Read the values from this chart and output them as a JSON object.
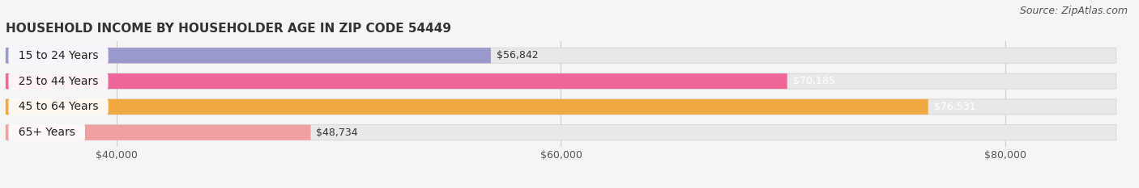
{
  "title": "HOUSEHOLD INCOME BY HOUSEHOLDER AGE IN ZIP CODE 54449",
  "source": "Source: ZipAtlas.com",
  "categories": [
    "15 to 24 Years",
    "25 to 44 Years",
    "45 to 64 Years",
    "65+ Years"
  ],
  "values": [
    56842,
    70185,
    76531,
    48734
  ],
  "bar_colors": [
    "#9999cc",
    "#ee6699",
    "#f0a840",
    "#f0a0a0"
  ],
  "value_labels": [
    "$56,842",
    "$70,185",
    "$76,531",
    "$48,734"
  ],
  "value_label_colors": [
    "#333333",
    "#ffffff",
    "#ffffff",
    "#333333"
  ],
  "xlim_min": 35000,
  "xlim_max": 85000,
  "xticks": [
    40000,
    60000,
    80000
  ],
  "xtick_labels": [
    "$40,000",
    "$60,000",
    "$80,000"
  ],
  "background_color": "#f5f5f5",
  "bar_bg_color": "#e8e8e8",
  "title_fontsize": 11,
  "source_fontsize": 9,
  "label_fontsize": 10,
  "tick_fontsize": 9,
  "bar_height": 0.6
}
